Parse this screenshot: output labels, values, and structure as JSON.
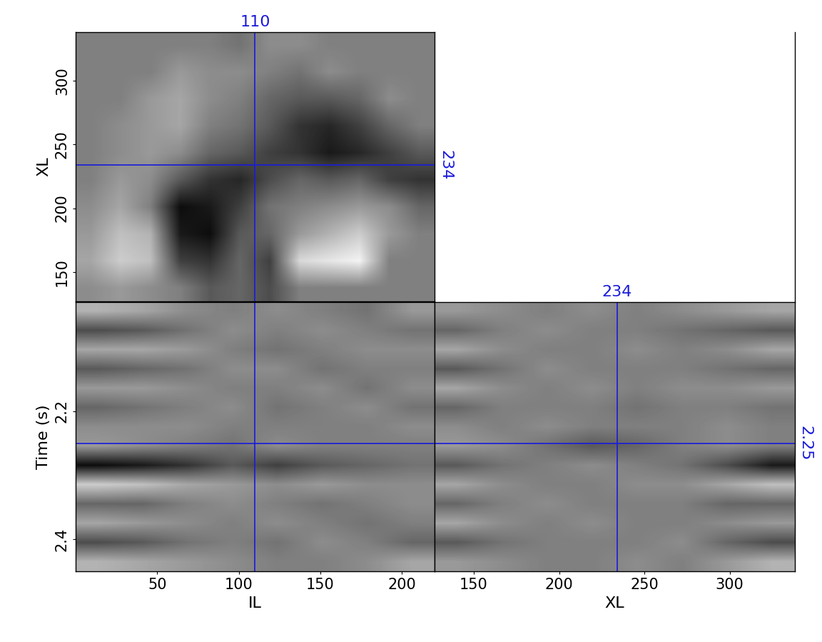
{
  "chart_data": [
    {
      "type": "heatmap",
      "y_label": "XL",
      "xlim": [
        0,
        220
      ],
      "ylim": [
        127,
        338
      ],
      "yticks": [
        150,
        200,
        250,
        300
      ],
      "tick_labels": "y",
      "color": "gray",
      "value_range": [
        -1,
        1
      ],
      "cursors": {
        "x": {
          "value": 110,
          "annotated": true
        },
        "y": {
          "value": 234,
          "annotated": true
        }
      },
      "cells": [
        [
          0,
          0,
          0,
          0,
          0,
          -0.1,
          0.1,
          0.1,
          0,
          0,
          0,
          0
        ],
        [
          0,
          0,
          0,
          0.2,
          0.1,
          0.1,
          0.0,
          -0.1,
          0.1,
          0,
          0,
          0
        ],
        [
          0,
          0,
          0.2,
          0.3,
          0.1,
          0.0,
          -0.2,
          -0.3,
          -0.3,
          -0.2,
          0.1,
          0
        ],
        [
          0,
          0.1,
          0.2,
          0.3,
          0.0,
          -0.1,
          -0.3,
          -0.6,
          -0.7,
          -0.5,
          -0.2,
          0
        ],
        [
          0.0,
          0.1,
          0.2,
          0.1,
          -0.2,
          -0.3,
          -0.5,
          -0.6,
          -0.8,
          -0.7,
          -0.5,
          -0.3
        ],
        [
          0.0,
          0.2,
          0.1,
          -0.3,
          -0.6,
          -0.7,
          -0.4,
          -0.2,
          -0.3,
          -0.2,
          -0.5,
          -0.6
        ],
        [
          0.1,
          0.3,
          0.0,
          -0.9,
          -0.8,
          -0.5,
          -0.1,
          0.0,
          0.1,
          0.2,
          0.1,
          -0.2
        ],
        [
          0.2,
          0.5,
          0.4,
          -0.8,
          -0.9,
          -0.3,
          -0.2,
          0.2,
          0.4,
          0.6,
          0.2,
          0
        ],
        [
          0.3,
          0.6,
          0.5,
          -0.5,
          -0.6,
          -0.2,
          -0.5,
          0.7,
          0.8,
          0.9,
          0,
          0
        ],
        [
          0.1,
          0.2,
          0.1,
          0.0,
          -0.3,
          -0.2,
          -0.4,
          0,
          0,
          0,
          0,
          0
        ]
      ]
    },
    {
      "type": "heatmap",
      "x_label": "IL",
      "y_label": "Time (s)",
      "xlim": [
        0,
        220
      ],
      "ylim": [
        2.45,
        2.03
      ],
      "xticks": [
        50,
        100,
        150,
        200
      ],
      "yticks": [
        2.2,
        2.4
      ],
      "color": "gray",
      "value_range": [
        -1,
        1
      ],
      "cursors": {
        "x": {
          "value": 110,
          "annotated": false
        },
        "y": {
          "value": 2.25,
          "annotated": false
        }
      },
      "cells": [
        [
          0.4,
          0.3,
          0.1,
          0.0,
          0.1,
          0.0,
          -0.1,
          0.2
        ],
        [
          -0.4,
          -0.3,
          -0.1,
          0.1,
          0.0,
          0.1,
          0.0,
          -0.1
        ],
        [
          0.3,
          0.3,
          0.2,
          0.0,
          -0.1,
          0.0,
          0.1,
          0.1
        ],
        [
          -0.3,
          -0.2,
          -0.1,
          0.1,
          0.1,
          -0.1,
          0.0,
          0.0
        ],
        [
          0.2,
          0.2,
          0.1,
          0.0,
          0.0,
          0.1,
          -0.1,
          0.1
        ],
        [
          -0.2,
          -0.1,
          0.0,
          0.1,
          -0.1,
          0.0,
          0.1,
          -0.1
        ],
        [
          0.1,
          0.1,
          0.1,
          0.0,
          0.0,
          0.0,
          0.0,
          0.1
        ],
        [
          0.2,
          0.1,
          0.0,
          -0.1,
          0.1,
          0.0,
          0.0,
          0.0
        ],
        [
          -0.9,
          -0.8,
          -0.6,
          -0.3,
          -0.5,
          -0.3,
          -0.2,
          -0.1
        ],
        [
          0.6,
          0.5,
          0.3,
          0.2,
          0.1,
          0.2,
          0.1,
          0.1
        ],
        [
          -0.2,
          -0.2,
          0.0,
          0.1,
          0.0,
          -0.1,
          0.0,
          0.1
        ],
        [
          0.3,
          0.2,
          0.1,
          0.0,
          0.1,
          0.0,
          -0.1,
          0.0
        ],
        [
          -0.4,
          -0.3,
          -0.1,
          0.0,
          -0.1,
          0.1,
          0.0,
          -0.2
        ],
        [
          0.4,
          0.3,
          0.2,
          0.1,
          0.0,
          0.0,
          0.1,
          0.3
        ]
      ]
    },
    {
      "type": "heatmap",
      "x_label": "XL",
      "xlim": [
        127,
        338
      ],
      "ylim": [
        2.45,
        2.03
      ],
      "xticks": [
        150,
        200,
        250,
        300
      ],
      "tick_labels": "x",
      "color": "gray",
      "value_range": [
        -1,
        1
      ],
      "cursors": {
        "x": {
          "value": 234,
          "annotated": true
        },
        "y": {
          "value": 2.25,
          "annotated": true
        }
      },
      "cells": [
        [
          0.2,
          0.1,
          0.0,
          0.1,
          0.0,
          0.1,
          0.2,
          0.3
        ],
        [
          -0.2,
          0.0,
          0.1,
          0.0,
          0.0,
          -0.1,
          -0.2,
          -0.3
        ],
        [
          0.3,
          0.1,
          0.0,
          0.0,
          0.1,
          0.0,
          0.1,
          0.3
        ],
        [
          -0.3,
          -0.1,
          0.1,
          0.0,
          0.0,
          0.0,
          -0.1,
          -0.2
        ],
        [
          0.3,
          0.1,
          0.0,
          0.1,
          0.0,
          0.1,
          0.1,
          0.2
        ],
        [
          -0.2,
          0.0,
          0.0,
          0.0,
          -0.1,
          0.0,
          0.0,
          -0.1
        ],
        [
          0.1,
          0.0,
          0.1,
          0.0,
          0.0,
          0.0,
          0.1,
          0.0
        ],
        [
          0.2,
          0.1,
          -0.1,
          -0.3,
          -0.2,
          0.0,
          0.1,
          0.0
        ],
        [
          -0.3,
          -0.1,
          0.0,
          0.1,
          0.0,
          -0.1,
          -0.4,
          -0.8
        ],
        [
          0.3,
          0.1,
          0.0,
          0.0,
          0.1,
          0.1,
          0.3,
          0.5
        ],
        [
          -0.2,
          0.0,
          0.1,
          0.0,
          0.0,
          0.0,
          -0.2,
          -0.2
        ],
        [
          0.3,
          0.1,
          0.0,
          0.1,
          0.0,
          0.0,
          0.1,
          0.2
        ],
        [
          -0.3,
          -0.1,
          0.0,
          0.0,
          0.0,
          0.1,
          -0.2,
          -0.4
        ],
        [
          0.2,
          0.1,
          0.0,
          0.0,
          0.1,
          0.0,
          0.2,
          0.4
        ]
      ]
    }
  ]
}
